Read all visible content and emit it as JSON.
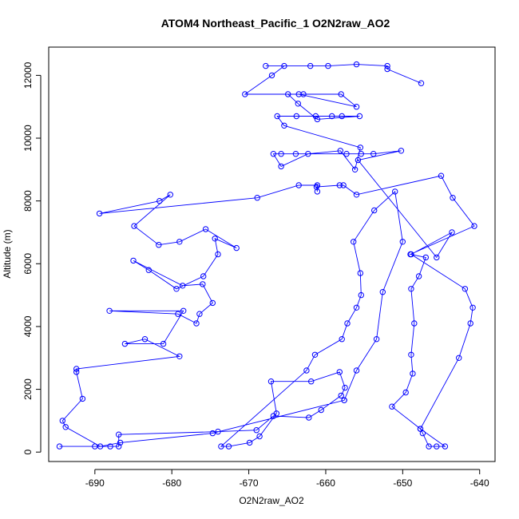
{
  "chart_data": {
    "type": "line",
    "title": "ATOM4 Northeast_Pacific_1 O2N2raw_AO2",
    "xlabel": "O2N2raw_AO2",
    "ylabel": "Altitude (m)",
    "xlim": [
      -696,
      -638
    ],
    "ylim": [
      -300,
      12900
    ],
    "xticks": [
      -690,
      -680,
      -670,
      -660,
      -650,
      -640
    ],
    "yticks": [
      0,
      2000,
      4000,
      6000,
      8000,
      10000,
      12000
    ],
    "grid": false,
    "line_color": "#0000ff",
    "marker": "open-circle",
    "series": [
      {
        "values": [
          [
            -694.6,
            180
          ],
          [
            -690,
            180
          ],
          [
            -688,
            180
          ],
          [
            -686.9,
            180
          ],
          [
            -686.9,
            560
          ],
          [
            -674,
            650
          ],
          [
            -669,
            700
          ],
          [
            -666.8,
            1150
          ],
          [
            -662.2,
            1100
          ],
          [
            -660.6,
            1340
          ],
          [
            -658,
            1800
          ],
          [
            -657.5,
            2050
          ],
          [
            -658.2,
            2550
          ],
          [
            -661.9,
            2250
          ],
          [
            -667.1,
            2250
          ],
          [
            -666.4,
            1230
          ],
          [
            -668.6,
            500
          ],
          [
            -669.9,
            300
          ],
          [
            -672.6,
            180
          ],
          [
            -673.6,
            180
          ],
          [
            -662.5,
            2600
          ],
          [
            -661.4,
            3100
          ],
          [
            -657.9,
            3600
          ],
          [
            -657.2,
            4100
          ],
          [
            -656.0,
            4600
          ],
          [
            -655.4,
            5000
          ],
          [
            -655.5,
            5700
          ],
          [
            -656.4,
            6700
          ],
          [
            -653.7,
            7700
          ],
          [
            -651.0,
            8300
          ],
          [
            -650.0,
            6700
          ],
          [
            -652.6,
            5100
          ],
          [
            -653.4,
            3600
          ],
          [
            -656.0,
            2600
          ],
          [
            -657.6,
            1650
          ],
          [
            -657.6,
            1650
          ],
          [
            -674.7,
            600
          ],
          [
            -686.7,
            300
          ],
          [
            -689.3,
            180
          ],
          [
            -693.8,
            800
          ],
          [
            -694.2,
            1000
          ],
          [
            -691.6,
            1700
          ],
          [
            -692.4,
            2550
          ],
          [
            -692.4,
            2650
          ],
          [
            -679.0,
            3050
          ],
          [
            -683.5,
            3600
          ],
          [
            -686.1,
            3450
          ],
          [
            -681.1,
            3450
          ],
          [
            -678.5,
            4500
          ],
          [
            -688.1,
            4500
          ],
          [
            -679.2,
            4400
          ],
          [
            -676.8,
            4100
          ],
          [
            -676.4,
            4400
          ],
          [
            -674.7,
            4750
          ],
          [
            -676.0,
            5350
          ],
          [
            -678.6,
            5300
          ],
          [
            -685.0,
            6100
          ],
          [
            -683.0,
            5800
          ],
          [
            -679.4,
            5200
          ],
          [
            -675.9,
            5600
          ],
          [
            -674.0,
            6300
          ],
          [
            -674.4,
            6800
          ],
          [
            -671.6,
            6500
          ],
          [
            -675.6,
            7100
          ],
          [
            -679.0,
            6700
          ],
          [
            -681.7,
            6600
          ],
          [
            -684.9,
            7200
          ],
          [
            -680.2,
            8200
          ],
          [
            -681.6,
            8000
          ],
          [
            -689.4,
            7600
          ],
          [
            -668.9,
            8100
          ],
          [
            -663.5,
            8500
          ],
          [
            -661.1,
            8500
          ],
          [
            -661.1,
            8300
          ],
          [
            -661.2,
            8450
          ],
          [
            -658.2,
            8500
          ],
          [
            -657.7,
            8500
          ],
          [
            -656.0,
            8200
          ],
          [
            -645.0,
            8800
          ],
          [
            -643.5,
            8100
          ],
          [
            -640.7,
            7200
          ],
          [
            -649.0,
            6300
          ],
          [
            -647.0,
            6200
          ],
          [
            -647.9,
            5600
          ],
          [
            -648.9,
            5200
          ],
          [
            -648.5,
            4100
          ],
          [
            -648.9,
            3100
          ],
          [
            -648.7,
            2500
          ],
          [
            -649.6,
            1900
          ],
          [
            -651.4,
            1450
          ],
          [
            -647.7,
            740
          ],
          [
            -647.4,
            600
          ],
          [
            -646.6,
            180
          ],
          [
            -645.6,
            180
          ],
          [
            -644.5,
            180
          ],
          [
            -647.7,
            740
          ],
          [
            -642.7,
            3000
          ],
          [
            -641.2,
            4100
          ],
          [
            -640.9,
            4600
          ],
          [
            -641.9,
            5200
          ],
          [
            -648.9,
            6300
          ],
          [
            -643.6,
            7000
          ],
          [
            -645.6,
            6200
          ],
          [
            -655.8,
            9300
          ],
          [
            -650.2,
            9600
          ],
          [
            -653.8,
            9500
          ],
          [
            -655.4,
            9500
          ],
          [
            -657.3,
            9500
          ],
          [
            -663.9,
            9500
          ],
          [
            -665.8,
            9500
          ],
          [
            -666.8,
            9500
          ],
          [
            -665.8,
            9100
          ],
          [
            -662.3,
            9500
          ],
          [
            -658.1,
            9600
          ],
          [
            -656.2,
            9000
          ],
          [
            -655.5,
            9700
          ],
          [
            -665.4,
            10400
          ],
          [
            -666.3,
            10700
          ],
          [
            -663.8,
            10700
          ],
          [
            -661.3,
            10700
          ],
          [
            -659.2,
            10700
          ],
          [
            -657.9,
            10700
          ],
          [
            -655.6,
            10700
          ],
          [
            -661.1,
            10600
          ],
          [
            -663.6,
            11100
          ],
          [
            -664.9,
            11400
          ],
          [
            -662.9,
            11400
          ],
          [
            -658.0,
            11400
          ],
          [
            -656.0,
            11000
          ],
          [
            -663.5,
            11400
          ],
          [
            -670.5,
            11400
          ],
          [
            -667.0,
            12000
          ],
          [
            -665.4,
            12300
          ],
          [
            -667.8,
            12300
          ],
          [
            -662.0,
            12300
          ],
          [
            -659.7,
            12300
          ],
          [
            -656.0,
            12350
          ],
          [
            -652.0,
            12300
          ],
          [
            -652.0,
            12200
          ],
          [
            -647.6,
            11750
          ]
        ]
      }
    ]
  }
}
